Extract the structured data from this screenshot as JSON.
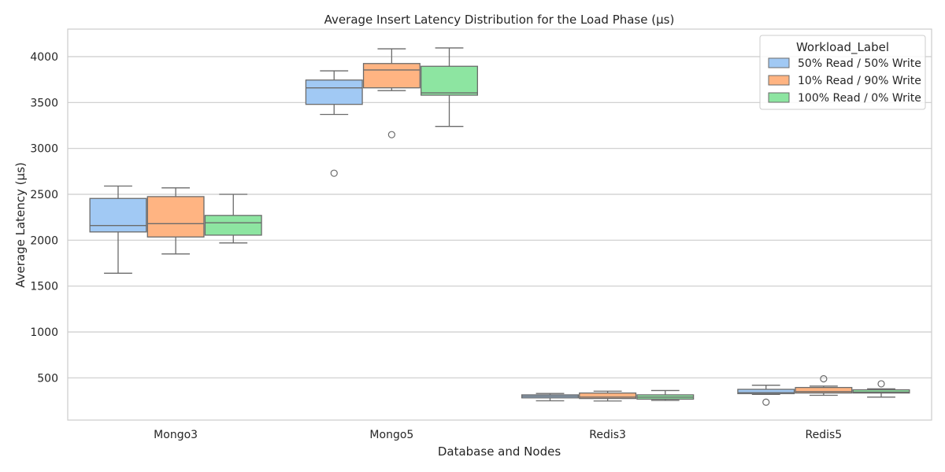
{
  "chart_data": {
    "type": "box",
    "title": "Average Insert Latency Distribution for the Load Phase (μs)",
    "xlabel": "Database and Nodes",
    "ylabel": "Average Latency (μs)",
    "categories": [
      "Mongo3",
      "Mongo5",
      "Redis3",
      "Redis5"
    ],
    "ylim": [
      40,
      4300
    ],
    "yticks": [
      500,
      1000,
      1500,
      2000,
      2500,
      3000,
      3500,
      4000
    ],
    "grid": true,
    "legend": {
      "title": "Workload_Label",
      "placement": "top-right"
    },
    "series": [
      {
        "name": "50% Read / 50% Write",
        "color": "#a1c9f4",
        "boxes": [
          {
            "whislo": 1640,
            "q1": 2090,
            "med": 2160,
            "q3": 2455,
            "whishi": 2590,
            "fliers": []
          },
          {
            "whislo": 3370,
            "q1": 3480,
            "med": 3660,
            "q3": 3745,
            "whishi": 3845,
            "fliers": [
              2730
            ]
          },
          {
            "whislo": 250,
            "q1": 282,
            "med": 300,
            "q3": 315,
            "whishi": 330,
            "fliers": []
          },
          {
            "whislo": 320,
            "q1": 328,
            "med": 340,
            "q3": 375,
            "whishi": 420,
            "fliers": [
              235
            ]
          }
        ]
      },
      {
        "name": "10% Read / 90% Write",
        "color": "#ffb482",
        "boxes": [
          {
            "whislo": 1850,
            "q1": 2035,
            "med": 2180,
            "q3": 2475,
            "whishi": 2570,
            "fliers": []
          },
          {
            "whislo": 3630,
            "q1": 3660,
            "med": 3855,
            "q3": 3925,
            "whishi": 4085,
            "fliers": [
              3150
            ]
          },
          {
            "whislo": 248,
            "q1": 275,
            "med": 290,
            "q3": 335,
            "whishi": 355,
            "fliers": []
          },
          {
            "whislo": 310,
            "q1": 335,
            "med": 350,
            "q3": 395,
            "whishi": 410,
            "fliers": [
              490
            ]
          }
        ]
      },
      {
        "name": "100% Read / 0% Write",
        "color": "#8de5a1",
        "boxes": [
          {
            "whislo": 1970,
            "q1": 2055,
            "med": 2190,
            "q3": 2270,
            "whishi": 2500,
            "fliers": []
          },
          {
            "whislo": 3240,
            "q1": 3580,
            "med": 3605,
            "q3": 3895,
            "whishi": 4095,
            "fliers": []
          },
          {
            "whislo": 255,
            "q1": 268,
            "med": 290,
            "q3": 315,
            "whishi": 362,
            "fliers": []
          },
          {
            "whislo": 290,
            "q1": 335,
            "med": 345,
            "q3": 370,
            "whishi": 380,
            "fliers": [
              435
            ]
          }
        ]
      }
    ]
  }
}
